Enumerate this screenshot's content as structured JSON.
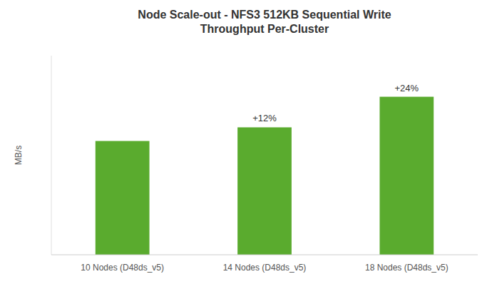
{
  "chart_data": {
    "type": "bar",
    "title": "Node Scale-out - NFS3 512KB Sequential Write\nThroughput Per-Cluster",
    "y_label": "MB/s",
    "categories": [
      "10 Nodes (D48ds_v5)",
      "14 Nodes (D48ds_v5)",
      "18 Nodes (D48ds_v5)"
    ],
    "values": [
      100,
      112,
      138.88
    ],
    "color": "#5aab2e",
    "annotations": [
      {
        "category": "14 Nodes (D48ds_v5)",
        "text": "+12%"
      },
      {
        "category": "18 Nodes (D48ds_v5)",
        "text": "+24%"
      }
    ],
    "ylim": [
      0,
      175
    ],
    "yticks": [],
    "grid": false,
    "tick_labels": "x"
  }
}
